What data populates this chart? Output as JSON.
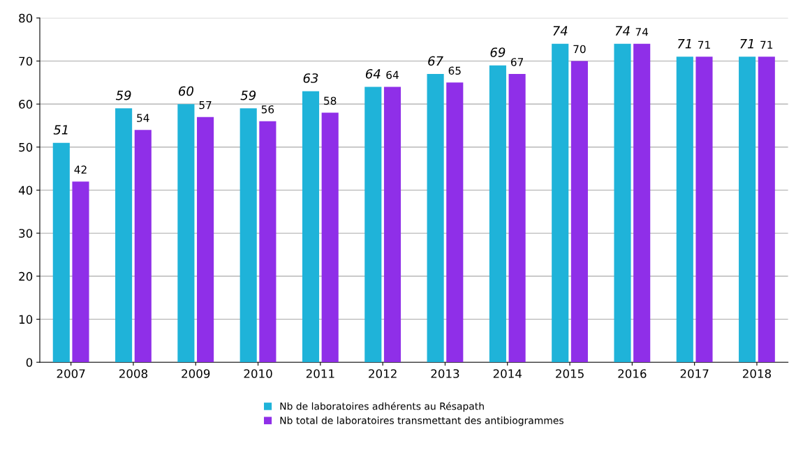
{
  "chart_data": {
    "type": "bar",
    "categories": [
      "2007",
      "2008",
      "2009",
      "2010",
      "2011",
      "2012",
      "2013",
      "2014",
      "2015",
      "2016",
      "2017",
      "2018"
    ],
    "series": [
      {
        "name": "Nb de laboratoires adhérents au Résapath",
        "color": "#1fb3d9",
        "values": [
          51,
          59,
          60,
          59,
          63,
          64,
          67,
          69,
          74,
          74,
          71,
          71
        ]
      },
      {
        "name": "Nb total de laboratoires transmettant des antibiogrammes",
        "color": "#8f2fe8",
        "values": [
          42,
          54,
          57,
          56,
          58,
          64,
          65,
          67,
          70,
          74,
          71,
          71
        ]
      }
    ],
    "ylim": [
      0,
      80
    ],
    "yticks": [
      0,
      10,
      20,
      30,
      40,
      50,
      60,
      70,
      80
    ],
    "grid": "y",
    "legend": "bottom",
    "data_labels": true
  }
}
